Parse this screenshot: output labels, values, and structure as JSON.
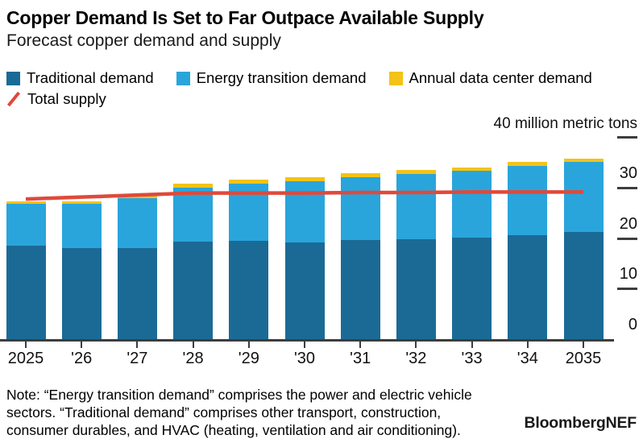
{
  "header": {
    "title": "Copper Demand Is Set to Far Outpace Available Supply",
    "subtitle": "Forecast copper demand and supply"
  },
  "legend": {
    "items": [
      {
        "label": "Traditional demand",
        "color": "#1b6a96",
        "swatch": "square"
      },
      {
        "label": "Energy transition demand",
        "color": "#29a5dc",
        "swatch": "square"
      },
      {
        "label": "Annual data center demand",
        "color": "#f3c317",
        "swatch": "square"
      }
    ],
    "supply_item": {
      "label": "Total supply",
      "color": "#e0493a",
      "swatch": "slash"
    }
  },
  "axis": {
    "unit_label": "40 million metric tons",
    "tick_color": "#3d3d3d",
    "axis_line_color": "#3d3d3d"
  },
  "note": {
    "text": "Note: “Energy transition demand” comprises the power and electric vehicle sectors. “Traditional demand” comprises other transport, construction, consumer durables, and HVAC (heating, ventilation and air conditioning)."
  },
  "branding": "BloombergNEF",
  "chart_data": {
    "type": "bar",
    "stacked": true,
    "title": "Copper Demand Is Set to Far Outpace Available Supply",
    "subtitle": "Forecast copper demand and supply",
    "unit": "million metric tons",
    "categories": [
      "2025",
      "'26",
      "'27",
      "'28",
      "'29",
      "'30",
      "'31",
      "'32",
      "'33",
      "'34",
      "2035"
    ],
    "series": [
      {
        "name": "Traditional demand",
        "color": "#1b6a96",
        "values": [
          18.5,
          18.0,
          18.0,
          19.3,
          19.4,
          19.1,
          19.6,
          19.8,
          20.1,
          20.6,
          21.2
        ]
      },
      {
        "name": "Energy transition demand",
        "color": "#29a5dc",
        "values": [
          8.2,
          8.7,
          9.9,
          10.6,
          11.3,
          12.1,
          12.4,
          12.9,
          13.2,
          13.7,
          13.9
        ]
      },
      {
        "name": "Annual data center demand",
        "color": "#f3c317",
        "values": [
          0.5,
          0.5,
          0.4,
          0.8,
          0.8,
          0.8,
          0.8,
          0.7,
          0.6,
          0.7,
          0.6
        ]
      }
    ],
    "line_series": {
      "name": "Total supply",
      "color": "#e0493a",
      "values": [
        27.7,
        28.1,
        28.5,
        28.9,
        28.9,
        28.9,
        29.0,
        29.0,
        29.1,
        29.1,
        29.1
      ]
    },
    "ylim": [
      0,
      40
    ],
    "yticks": [
      0,
      10,
      20,
      30,
      40
    ],
    "ytick_labeled": [
      0,
      10,
      20,
      30
    ],
    "grid": false,
    "legend_position": "top"
  }
}
